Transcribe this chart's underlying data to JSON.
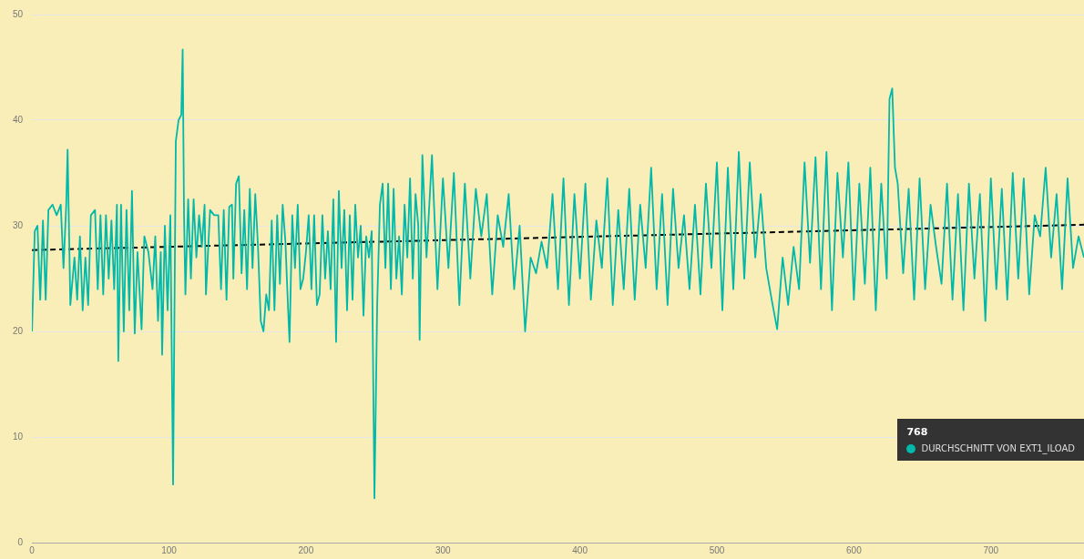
{
  "chart_data": {
    "type": "line",
    "xlim": [
      0,
      768
    ],
    "ylim": [
      0,
      50
    ],
    "xticks": [
      0,
      100,
      200,
      300,
      400,
      500,
      600,
      700
    ],
    "yticks": [
      0,
      10,
      20,
      30,
      40,
      50
    ],
    "grid": "y",
    "legend": "bottom right",
    "annotations": [
      "768"
    ],
    "series": [
      {
        "name": "DURCHSCHNITT VON EXT1_ILOAD",
        "color": "#01b8aa",
        "x": [
          0,
          2,
          4,
          6,
          8,
          10,
          12,
          15,
          18,
          21,
          23,
          25,
          26,
          28,
          31,
          33,
          35,
          37,
          39,
          41,
          43,
          46,
          48,
          50,
          52,
          54,
          56,
          58,
          60,
          62,
          63,
          65,
          67,
          69,
          71,
          73,
          75,
          77,
          80,
          82,
          85,
          88,
          90,
          92,
          94,
          95,
          97,
          99,
          101,
          103,
          105,
          107,
          109,
          110,
          111,
          112,
          114,
          116,
          118,
          120,
          122,
          124,
          126,
          127,
          130,
          133,
          136,
          138,
          140,
          142,
          144,
          146,
          147,
          149,
          151,
          153,
          155,
          157,
          159,
          161,
          163,
          165,
          167,
          169,
          171,
          173,
          175,
          177,
          179,
          181,
          183,
          185,
          187,
          188,
          190,
          192,
          194,
          196,
          198,
          200,
          202,
          204,
          206,
          208,
          210,
          212,
          214,
          216,
          218,
          220,
          222,
          224,
          226,
          228,
          230,
          232,
          234,
          236,
          238,
          240,
          242,
          244,
          246,
          248,
          250,
          252,
          254,
          256,
          258,
          260,
          262,
          264,
          266,
          268,
          270,
          272,
          274,
          276,
          278,
          280,
          282,
          283,
          285,
          288,
          292,
          296,
          300,
          304,
          308,
          312,
          316,
          320,
          324,
          328,
          332,
          336,
          340,
          344,
          348,
          352,
          356,
          360,
          364,
          368,
          372,
          376,
          380,
          384,
          388,
          392,
          396,
          400,
          404,
          408,
          412,
          416,
          420,
          424,
          428,
          432,
          436,
          440,
          444,
          448,
          452,
          456,
          460,
          464,
          468,
          472,
          476,
          480,
          484,
          488,
          492,
          496,
          500,
          504,
          508,
          512,
          516,
          520,
          524,
          528,
          532,
          536,
          540,
          544,
          548,
          552,
          556,
          560,
          564,
          568,
          572,
          576,
          580,
          584,
          588,
          592,
          596,
          600,
          604,
          608,
          612,
          616,
          620,
          624,
          626,
          628,
          630,
          632,
          636,
          640,
          644,
          648,
          652,
          656,
          660,
          664,
          668,
          672,
          676,
          680,
          684,
          688,
          692,
          696,
          700,
          704,
          708,
          712,
          716,
          720,
          724,
          728,
          732,
          736,
          740,
          744,
          748,
          752,
          756,
          760,
          764,
          768
        ],
        "values": [
          20,
          29.5,
          30,
          23,
          30.5,
          23,
          31.5,
          32,
          31,
          32,
          26,
          32,
          37.2,
          22.5,
          27,
          23,
          29,
          22,
          27,
          22.5,
          31,
          31.5,
          24,
          31,
          23.5,
          31,
          25,
          30.5,
          24,
          32,
          17.2,
          32,
          20,
          31.5,
          22,
          33.3,
          19.8,
          27.5,
          20.2,
          29,
          27.5,
          24,
          29,
          21,
          27.5,
          17.8,
          30,
          22,
          31,
          5.5,
          38,
          40,
          40.5,
          46.7,
          31,
          23.5,
          32.5,
          25,
          32.5,
          27,
          31,
          28,
          32,
          23.5,
          31.5,
          31,
          31,
          24,
          31.5,
          23,
          31.8,
          32,
          25,
          34,
          34.7,
          25.5,
          31.5,
          24,
          33.5,
          26,
          33,
          28,
          21,
          20,
          23.5,
          22,
          30.5,
          22,
          31,
          24.5,
          32,
          28.5,
          22,
          19,
          31,
          26,
          32,
          24,
          25,
          27.5,
          31,
          24,
          31,
          22.5,
          23.5,
          31,
          25,
          29.5,
          24,
          32.5,
          19,
          33.3,
          26,
          31.5,
          22,
          31,
          23,
          32,
          27,
          30,
          21.5,
          29,
          27,
          29.5,
          4.2,
          22.5,
          32,
          34,
          26,
          34,
          24,
          33.5,
          25,
          29,
          23.5,
          32,
          27,
          34.5,
          25,
          33,
          30,
          19.2,
          36.7,
          27,
          36.7,
          24,
          34.5,
          26,
          35,
          22.5,
          34,
          25,
          33.5,
          29,
          33,
          23.5,
          31,
          28,
          33,
          24,
          30,
          20,
          27,
          25.5,
          28.5,
          26,
          33,
          24,
          34.5,
          22.5,
          33,
          25,
          34,
          23,
          30.5,
          26,
          34.5,
          22.5,
          31.5,
          24,
          33.5,
          23,
          32,
          26,
          35.5,
          24,
          33,
          22.5,
          33.5,
          26,
          31,
          24,
          32,
          23.5,
          34,
          26,
          36,
          22,
          35.5,
          24,
          37,
          25,
          36,
          27,
          33,
          26,
          23,
          20.2,
          27,
          22.5,
          28,
          24,
          36,
          26.5,
          36.5,
          24,
          37,
          22,
          35,
          27,
          36,
          23,
          34,
          24.5,
          35.5,
          22,
          34,
          25,
          42,
          43,
          35.5,
          34,
          25.5,
          33.5,
          23,
          34.5,
          24,
          32,
          28,
          24.5,
          34,
          23,
          33,
          22,
          34,
          25,
          33,
          21,
          34.5,
          24,
          33.5,
          23,
          35,
          25,
          34.5,
          23.5,
          31,
          29,
          35.5,
          27,
          33,
          24,
          34.5,
          26,
          29,
          27
        ]
      },
      {
        "type": "line",
        "color": "#000000",
        "line_style": "dashed",
        "x": [
          0,
          768
        ],
        "values": [
          27.7,
          30.1
        ]
      }
    ]
  }
}
